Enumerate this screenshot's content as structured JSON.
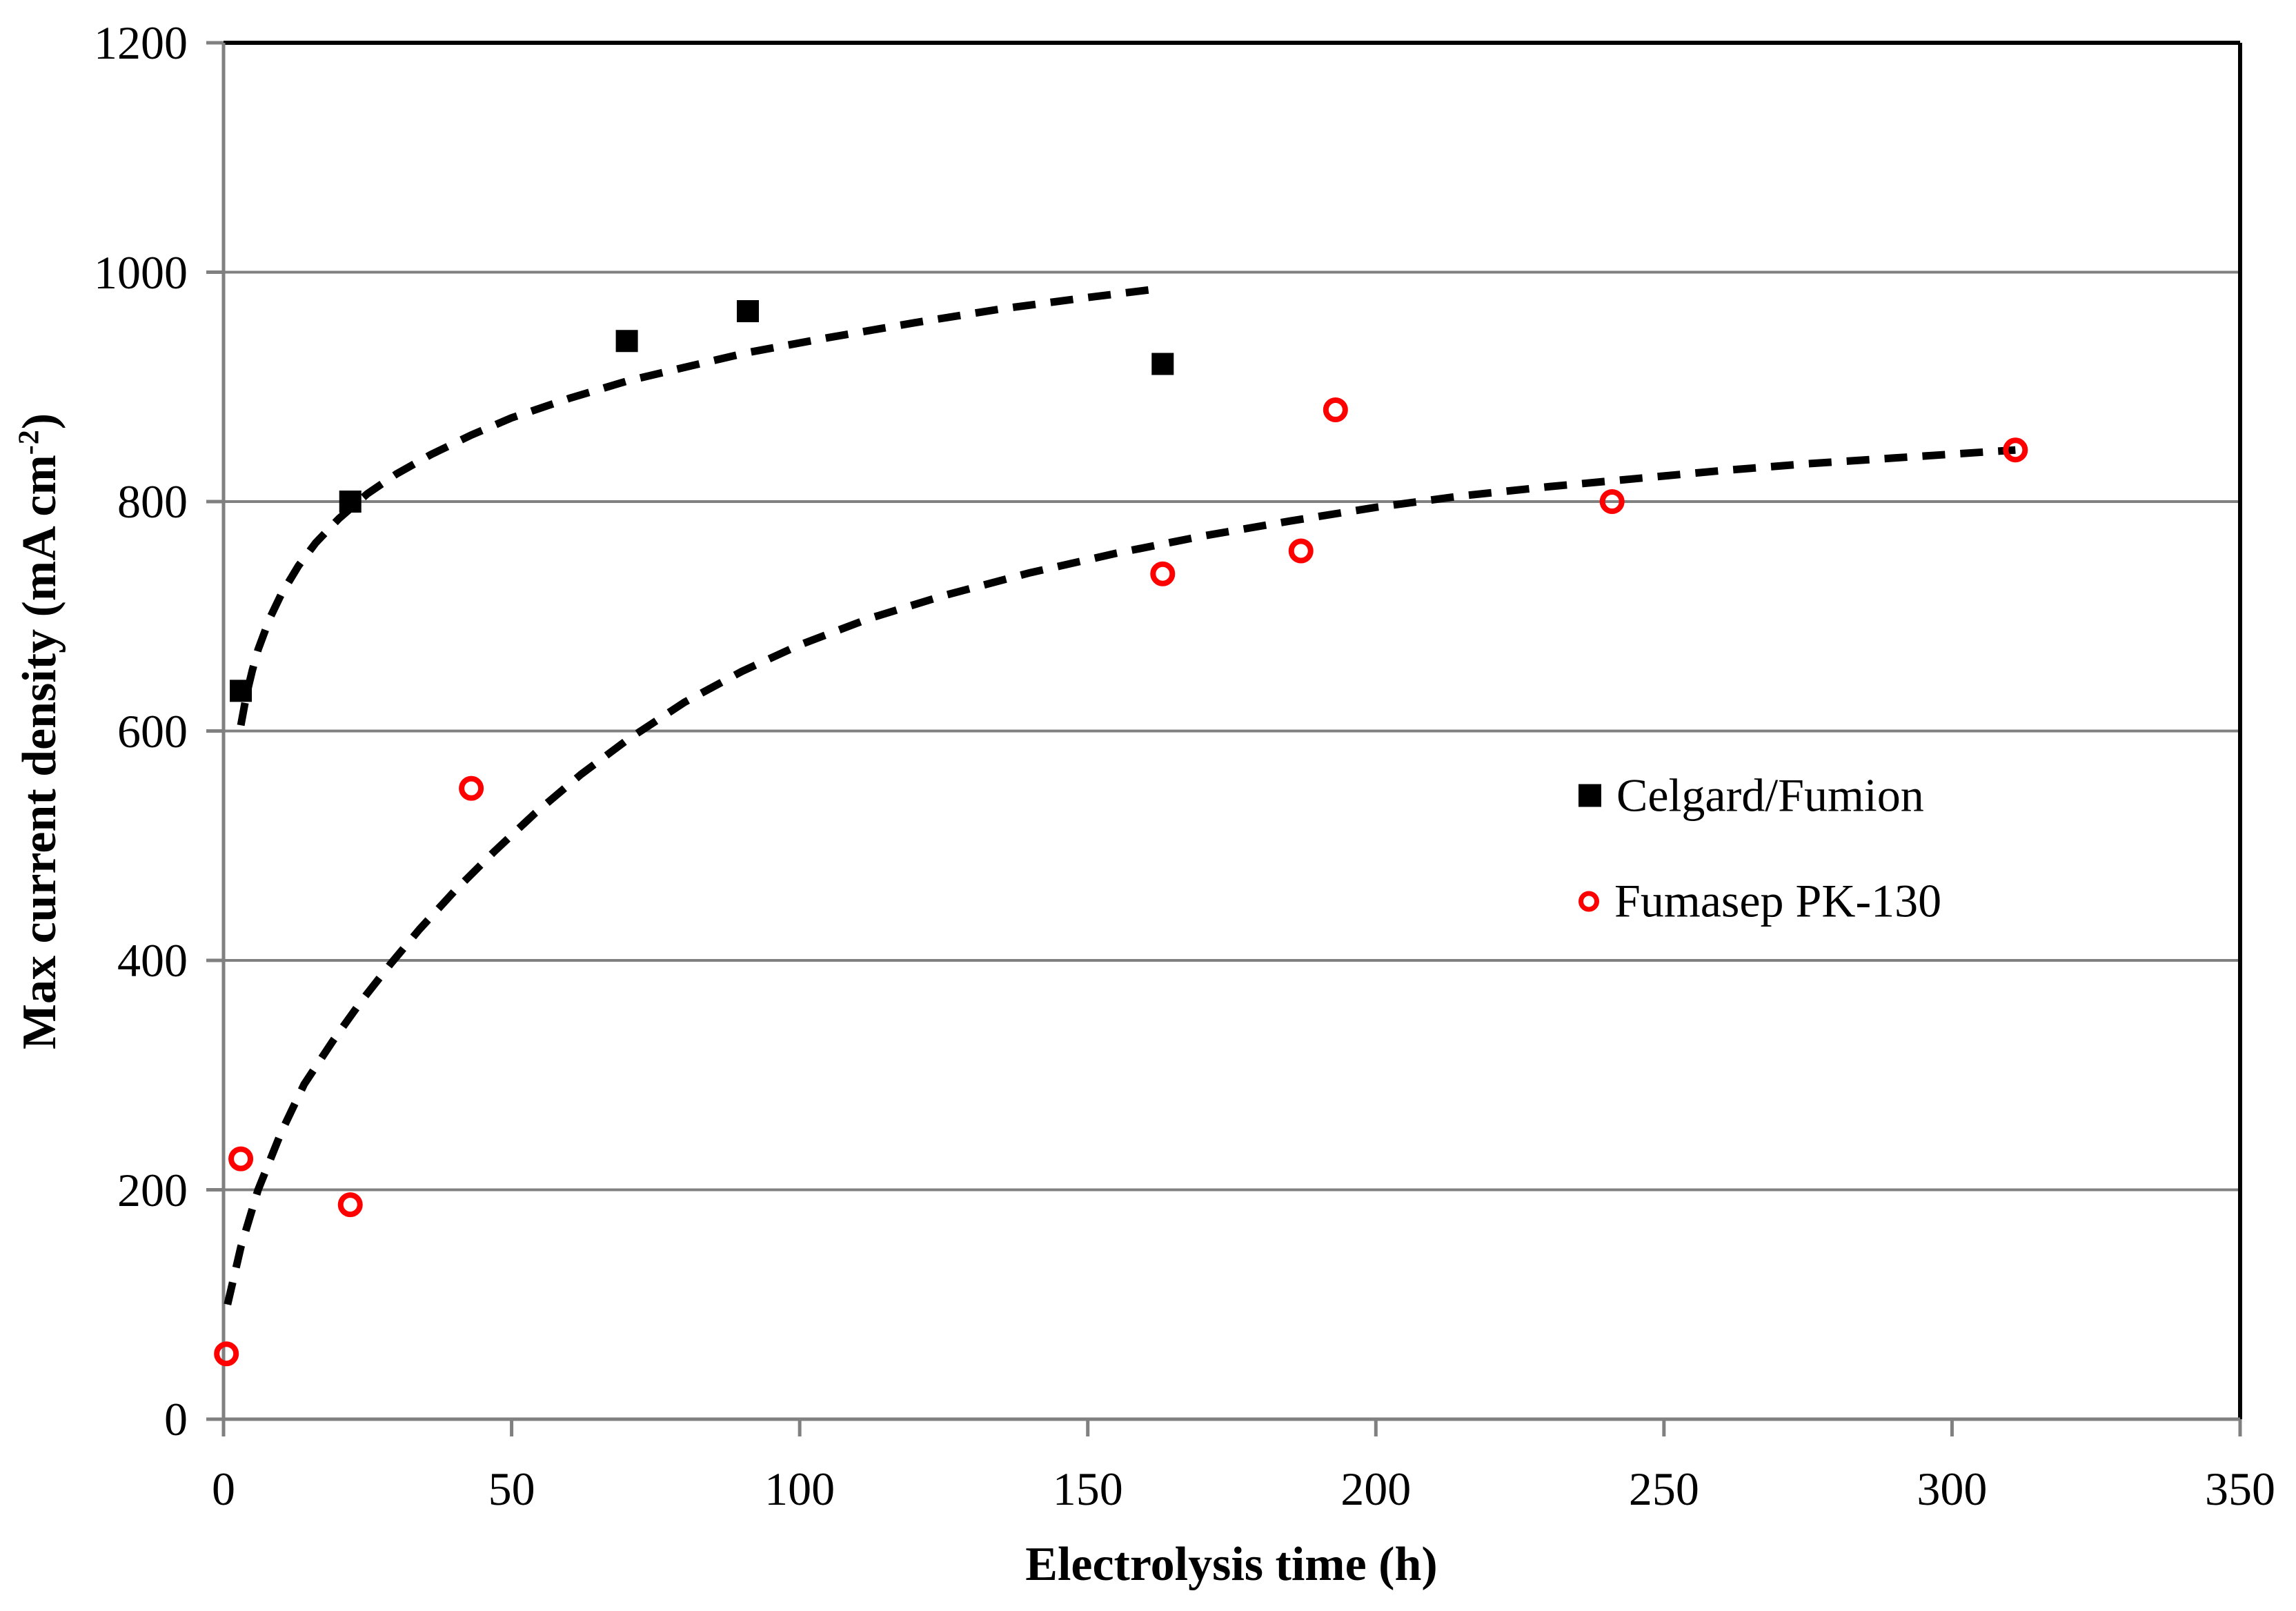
{
  "chart_data": {
    "type": "scatter",
    "title": "",
    "xlabel": "Electrolysis time (h)",
    "ylabel": "Max current density (mA cm-2)",
    "ylabel_parts": {
      "main": "Max current density (mA cm",
      "sup": "-2",
      "end": ")"
    },
    "xlim": [
      0,
      350
    ],
    "ylim": [
      0,
      1200
    ],
    "x_ticks": [
      0,
      50,
      100,
      150,
      200,
      250,
      300,
      350
    ],
    "y_ticks": [
      0,
      200,
      400,
      600,
      800,
      1000,
      1200
    ],
    "grid": "horizontal",
    "legend_position": "middle-right",
    "colors": {
      "axis": "#808080",
      "gridline": "#808080",
      "frame": "#000000",
      "celgard": "#000000",
      "fumasep": "#ff0000",
      "trend": "#000000",
      "background": "#ffffff"
    },
    "series": [
      {
        "name": "Celgard/Fumion",
        "marker": "filled-square",
        "color": "#000000",
        "points": [
          [
            3,
            635
          ],
          [
            22,
            800
          ],
          [
            70,
            940
          ],
          [
            91,
            966
          ],
          [
            163,
            920
          ]
        ]
      },
      {
        "name": "Fumasep PK-130",
        "marker": "open-circle",
        "color": "#ff0000",
        "points": [
          [
            0.5,
            57
          ],
          [
            3,
            227
          ],
          [
            22,
            187
          ],
          [
            43,
            550
          ],
          [
            163,
            737
          ],
          [
            187,
            757
          ],
          [
            193,
            880
          ],
          [
            241,
            800
          ],
          [
            311,
            845
          ]
        ]
      }
    ],
    "trendlines": [
      {
        "series": "Celgard/Fumion",
        "style": "dashed",
        "color": "#000000",
        "points": [
          [
            3,
            605
          ],
          [
            4,
            632
          ],
          [
            5,
            653
          ],
          [
            6,
            671
          ],
          [
            8,
            698
          ],
          [
            10,
            719
          ],
          [
            13,
            744
          ],
          [
            16,
            764
          ],
          [
            20,
            785
          ],
          [
            25,
            807
          ],
          [
            30,
            824
          ],
          [
            36,
            841
          ],
          [
            43,
            858
          ],
          [
            50,
            873
          ],
          [
            60,
            890
          ],
          [
            70,
            905
          ],
          [
            80,
            917
          ],
          [
            91,
            930
          ],
          [
            105,
            943
          ],
          [
            120,
            956
          ],
          [
            135,
            968
          ],
          [
            150,
            978
          ],
          [
            163,
            986
          ]
        ]
      },
      {
        "series": "Fumasep PK-130",
        "style": "dashed",
        "color": "#000000",
        "points": [
          [
            0.7,
            100
          ],
          [
            3,
            150
          ],
          [
            6,
            200
          ],
          [
            10,
            250
          ],
          [
            14,
            292
          ],
          [
            19,
            330
          ],
          [
            24,
            365
          ],
          [
            29,
            397
          ],
          [
            34,
            427
          ],
          [
            40,
            460
          ],
          [
            47,
            495
          ],
          [
            54,
            528
          ],
          [
            62,
            562
          ],
          [
            70,
            592
          ],
          [
            80,
            625
          ],
          [
            90,
            652
          ],
          [
            100,
            675
          ],
          [
            112,
            698
          ],
          [
            125,
            718
          ],
          [
            140,
            738
          ],
          [
            155,
            755
          ],
          [
            170,
            770
          ],
          [
            185,
            783
          ],
          [
            200,
            795
          ],
          [
            215,
            805
          ],
          [
            230,
            813
          ],
          [
            245,
            820
          ],
          [
            260,
            827
          ],
          [
            275,
            833
          ],
          [
            290,
            838
          ],
          [
            311,
            845
          ]
        ]
      }
    ]
  }
}
